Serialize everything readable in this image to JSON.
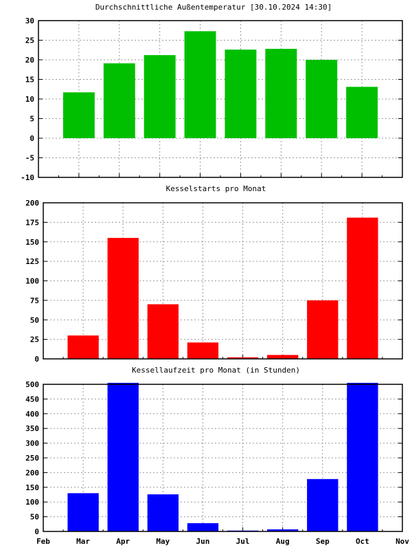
{
  "chart_data": [
    {
      "type": "bar",
      "title": "Durchschnittliche Außentemperatur [30.10.2024 14:30]",
      "categories": [
        "Mar",
        "Apr",
        "May",
        "Jun",
        "Jul",
        "Aug",
        "Sep",
        "Oct"
      ],
      "values": [
        11.7,
        19.1,
        21.2,
        27.3,
        22.6,
        22.8,
        20.0,
        13.1
      ],
      "ylim": [
        -10,
        30
      ],
      "yticks": [
        "-10",
        "-5",
        "0",
        "5",
        "10",
        "15",
        "20",
        "25",
        "30"
      ],
      "xlabel": "",
      "ylabel": "",
      "grid": true,
      "color": "#00bf00",
      "show_xtick_labels": false
    },
    {
      "type": "bar",
      "title": "Kesselstarts pro Monat",
      "categories": [
        "Mar",
        "Apr",
        "May",
        "Jun",
        "Jul",
        "Aug",
        "Sep",
        "Oct"
      ],
      "values": [
        30,
        155,
        70,
        21,
        2,
        5,
        75,
        181
      ],
      "ylim": [
        0,
        200
      ],
      "yticks": [
        "0",
        "25",
        "50",
        "75",
        "100",
        "125",
        "150",
        "175",
        "200"
      ],
      "xlabel": "",
      "ylabel": "",
      "grid": true,
      "color": "#ff0000",
      "show_xtick_labels": false
    },
    {
      "type": "bar",
      "title": "Kessellaufzeit pro Monat (in Stunden)",
      "categories": [
        "Mar",
        "Apr",
        "May",
        "Jun",
        "Jul",
        "Aug",
        "Sep",
        "Oct"
      ],
      "values": [
        130,
        505,
        126,
        28,
        3,
        7,
        178,
        505
      ],
      "ylim": [
        0,
        500
      ],
      "yticks": [
        "0",
        "50",
        "100",
        "150",
        "200",
        "250",
        "300",
        "350",
        "400",
        "450",
        "500"
      ],
      "xticks": [
        "Feb",
        "Mar",
        "Apr",
        "May",
        "Jun",
        "Jul",
        "Aug",
        "Sep",
        "Oct",
        "Nov"
      ],
      "xlabel": "",
      "ylabel": "",
      "grid": true,
      "color": "#0000ff",
      "show_xtick_labels": true
    }
  ]
}
